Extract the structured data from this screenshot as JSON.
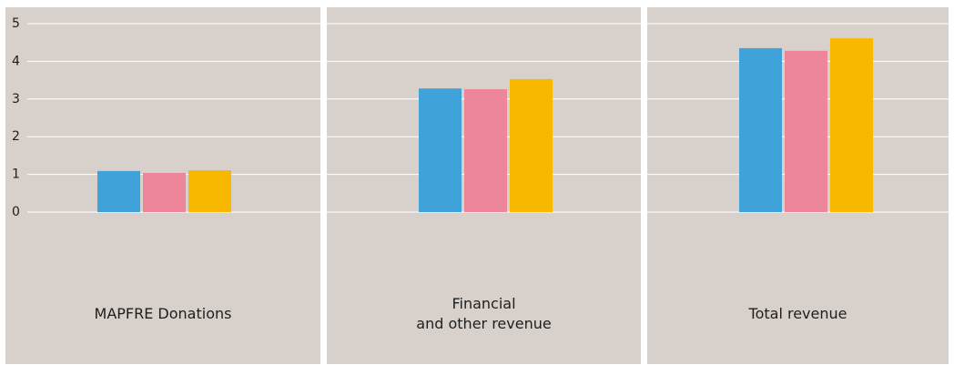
{
  "chart_data": {
    "type": "bar",
    "categories": [
      "MAPFRE Donations",
      "Financial\nand other revenue",
      "Total revenue"
    ],
    "series": [
      {
        "color": "#3fa3d9",
        "values": [
          1.09,
          3.28,
          4.35
        ]
      },
      {
        "color": "#ee869b",
        "values": [
          1.04,
          3.26,
          4.28
        ]
      },
      {
        "color": "#f9b800",
        "values": [
          1.11,
          3.53,
          4.61
        ]
      }
    ],
    "ylim": [
      0,
      5
    ],
    "yticks": [
      0,
      1,
      2,
      3,
      4,
      5
    ],
    "grid": true
  }
}
